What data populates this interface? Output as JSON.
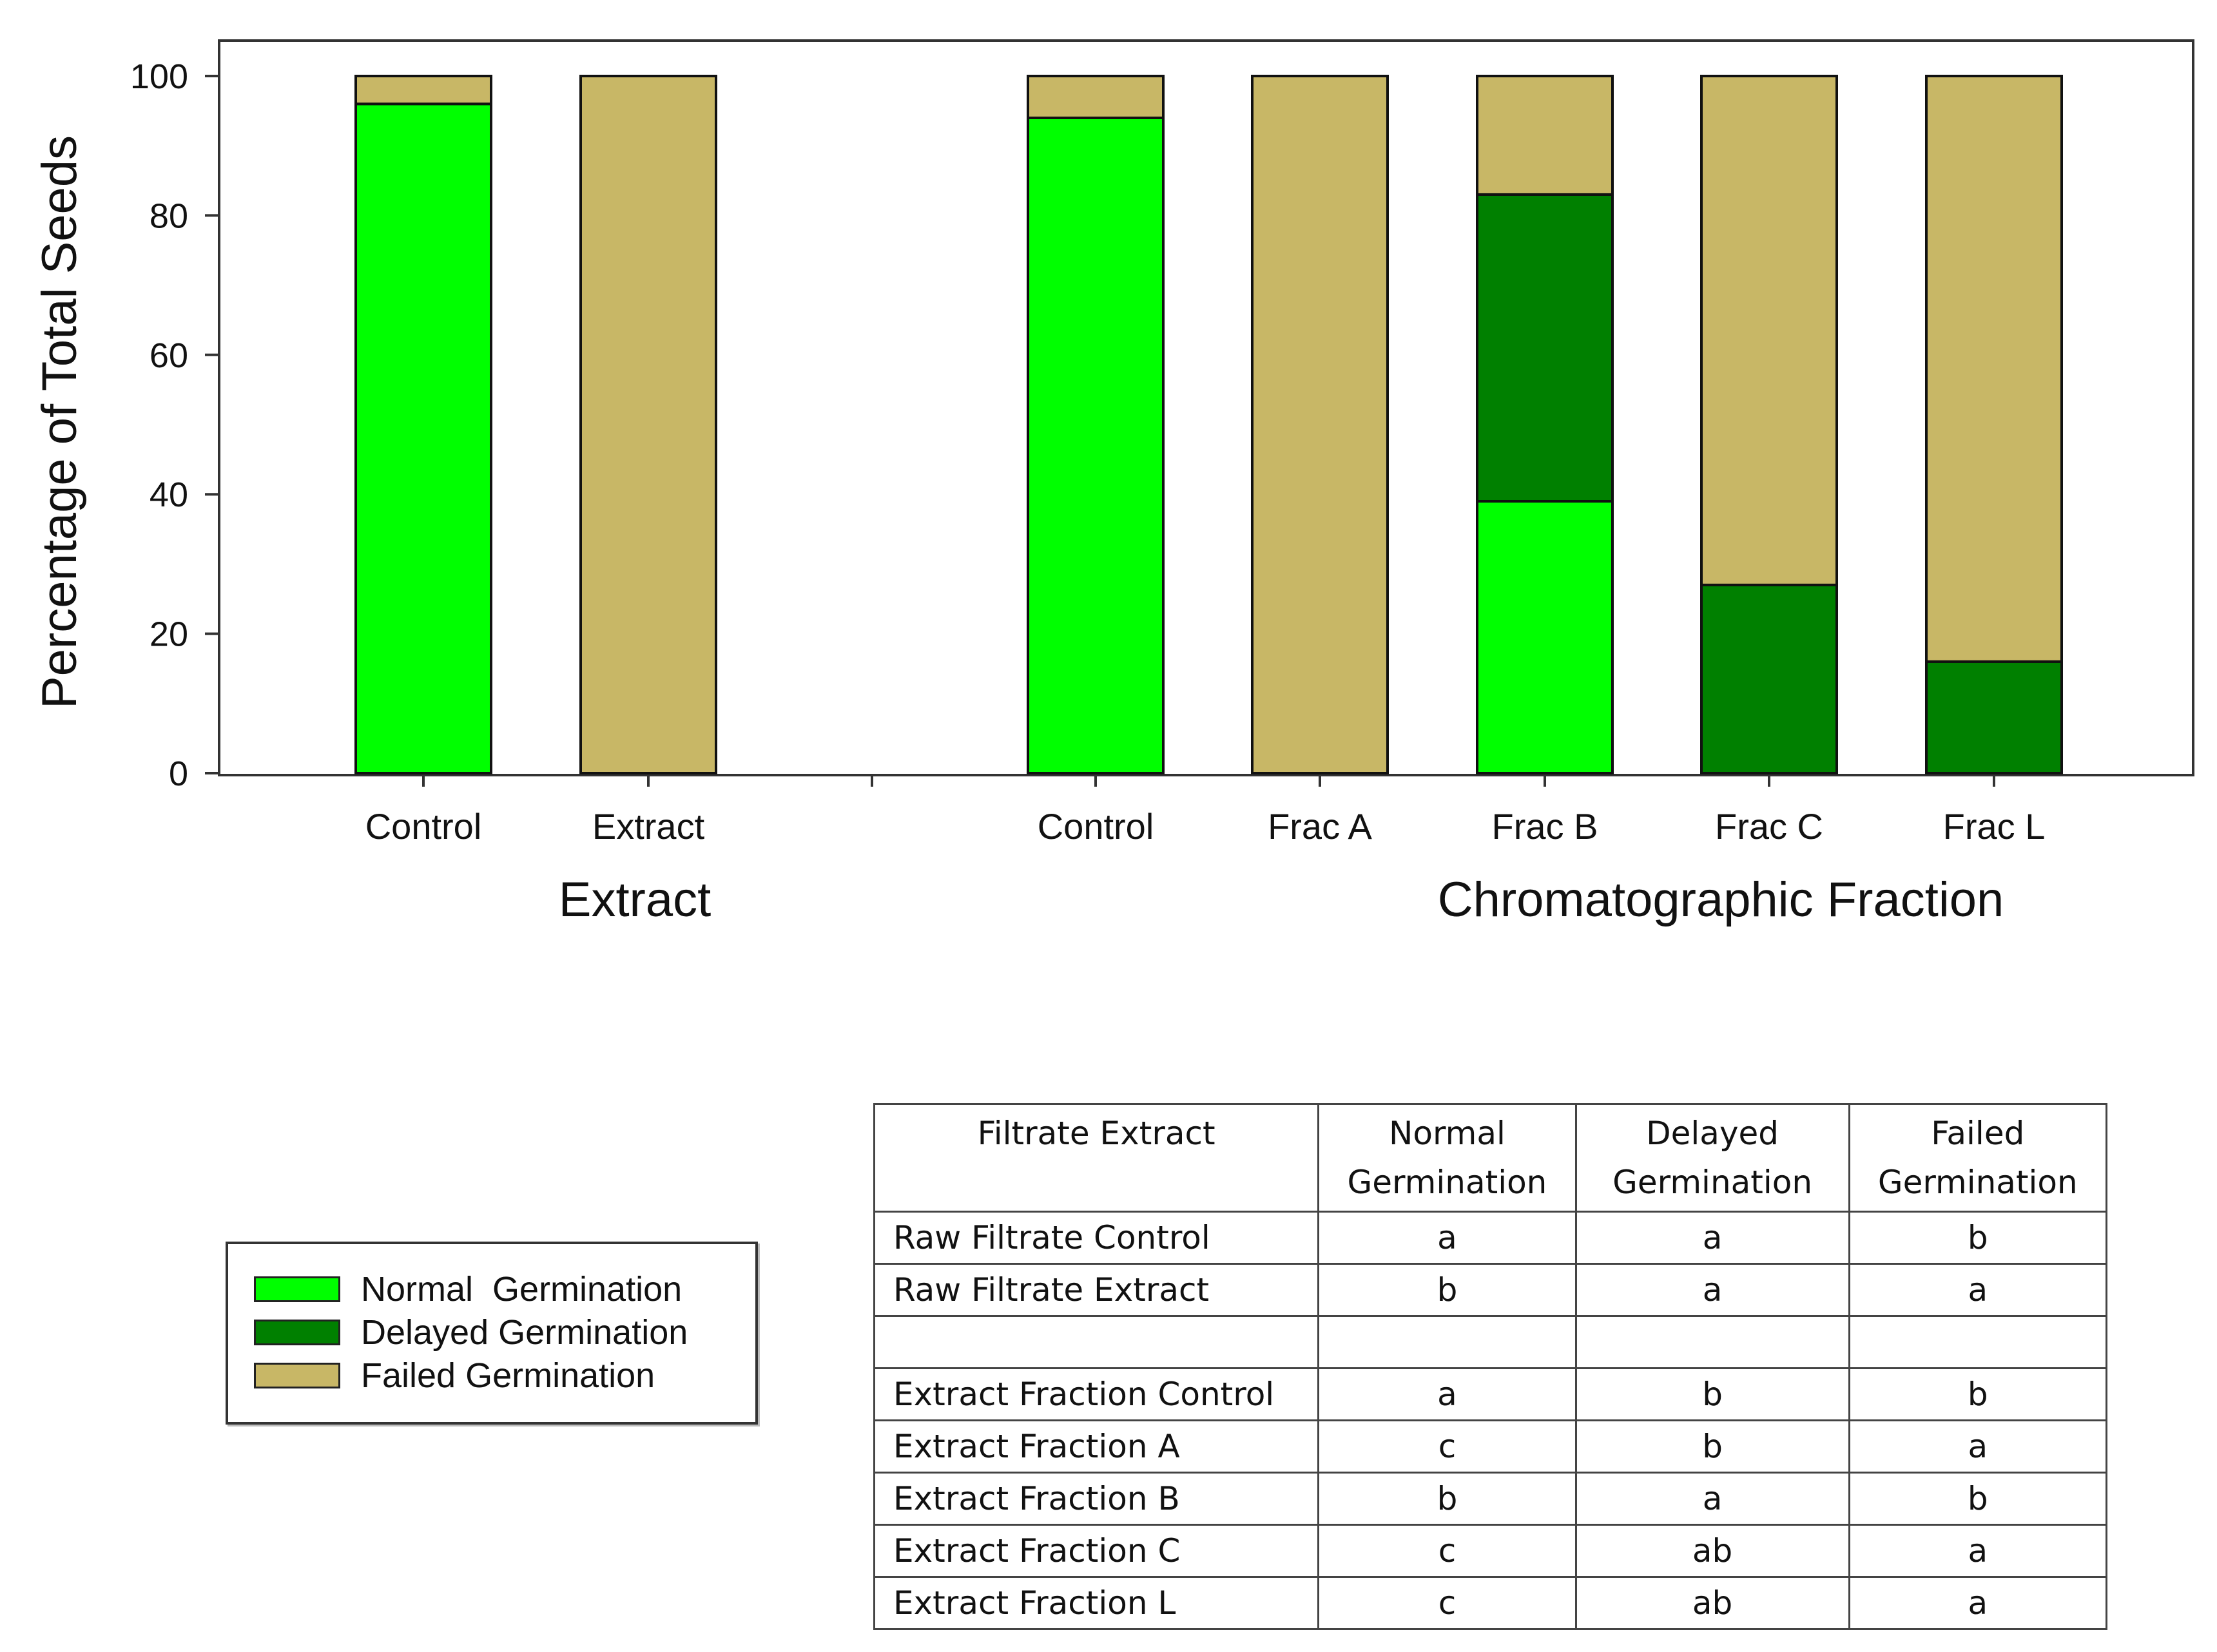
{
  "chart_data": {
    "type": "bar",
    "stacked": true,
    "ylabel": "Percentage of Total Seeds",
    "ylim": [
      0,
      100
    ],
    "yticks": [
      0,
      20,
      40,
      60,
      80,
      100
    ],
    "categories": [
      "Control",
      "Extract",
      "Control",
      "Frac A",
      "Frac B",
      "Frac C",
      "Frac L"
    ],
    "groups": [
      {
        "label": "Extract",
        "categories": [
          "Control",
          "Extract"
        ]
      },
      {
        "label": "Chromatographic Fraction",
        "categories": [
          "Control",
          "Frac A",
          "Frac B",
          "Frac C",
          "Frac L"
        ]
      }
    ],
    "series": [
      {
        "name": "Normal  Germination",
        "color": "#00ff00",
        "values": [
          96,
          0,
          94,
          0,
          39,
          0,
          0
        ]
      },
      {
        "name": "Delayed Germination",
        "color": "#008000",
        "values": [
          0,
          0,
          0,
          0,
          44,
          27,
          16
        ]
      },
      {
        "name": "Failed Germination",
        "color": "#c8b766",
        "values": [
          4,
          100,
          6,
          100,
          17,
          73,
          84
        ]
      }
    ],
    "legend_position": "bottom-left",
    "grid": false
  },
  "table": {
    "headers": [
      "Filtrate Extract",
      "Normal Germination",
      "Delayed Germination",
      "Failed Germination"
    ],
    "rows": [
      [
        "Raw Filtrate Control",
        "a",
        "a",
        "b"
      ],
      [
        "Raw Filtrate Extract",
        "b",
        "a",
        "a"
      ],
      [
        "",
        "",
        "",
        ""
      ],
      [
        "Extract Fraction Control",
        "a",
        "b",
        "b"
      ],
      [
        "Extract Fraction A",
        "c",
        "b",
        "a"
      ],
      [
        "Extract Fraction B",
        "b",
        "a",
        "b"
      ],
      [
        "Extract Fraction C",
        "c",
        "ab",
        "a"
      ],
      [
        "Extract Fraction L",
        "c",
        "ab",
        "a"
      ]
    ]
  }
}
